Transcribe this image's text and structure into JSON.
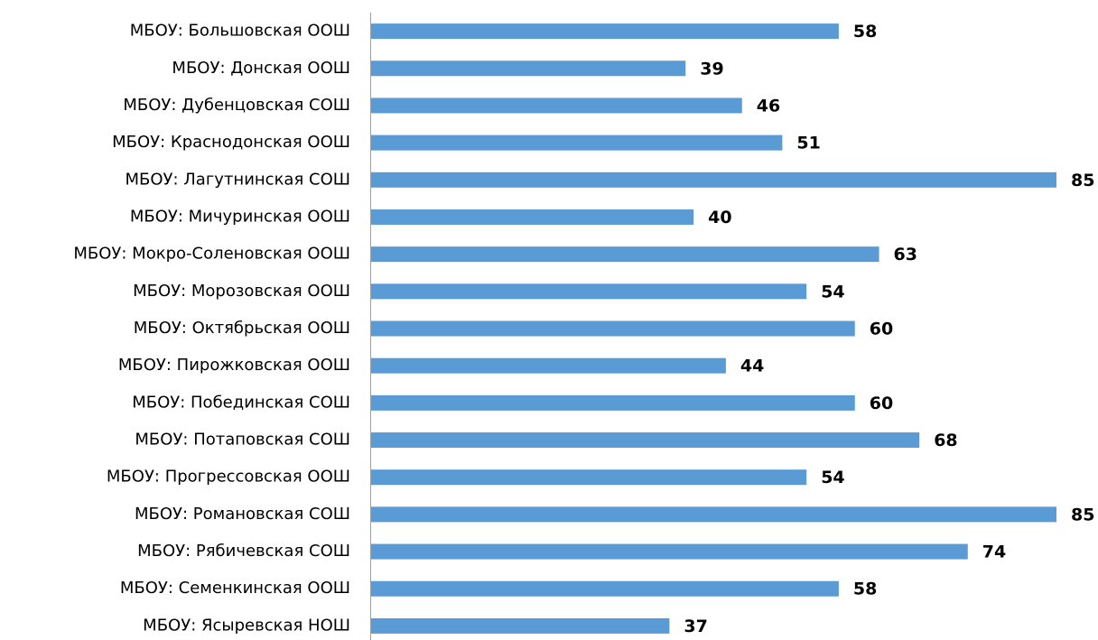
{
  "chart_data": {
    "type": "bar",
    "orientation": "horizontal",
    "categories": [
      "МБОУ: Большовская ООШ",
      "МБОУ: Донская ООШ",
      "МБОУ: Дубенцовская СОШ",
      "МБОУ: Краснодонская ООШ",
      "МБОУ: Лагутнинская СОШ",
      "МБОУ: Мичуринская ООШ",
      "МБОУ: Мокро-Соленовская ООШ",
      "МБОУ: Морозовская ООШ",
      "МБОУ: Октябрьская ООШ",
      "МБОУ: Пирожковская ООШ",
      "МБОУ: Побединская СОШ",
      "МБОУ: Потаповская СОШ",
      "МБОУ: Прогрессовская ООШ",
      "МБОУ: Романовская СОШ",
      "МБОУ: Рябичевская СОШ",
      "МБОУ: Семенкинская ООШ",
      "МБОУ: Ясыревская НОШ"
    ],
    "values": [
      58,
      39,
      46,
      51,
      85,
      40,
      63,
      54,
      60,
      44,
      60,
      68,
      54,
      85,
      74,
      58,
      37
    ],
    "color": "#5b9bd5",
    "xlim": [
      0,
      85
    ]
  }
}
